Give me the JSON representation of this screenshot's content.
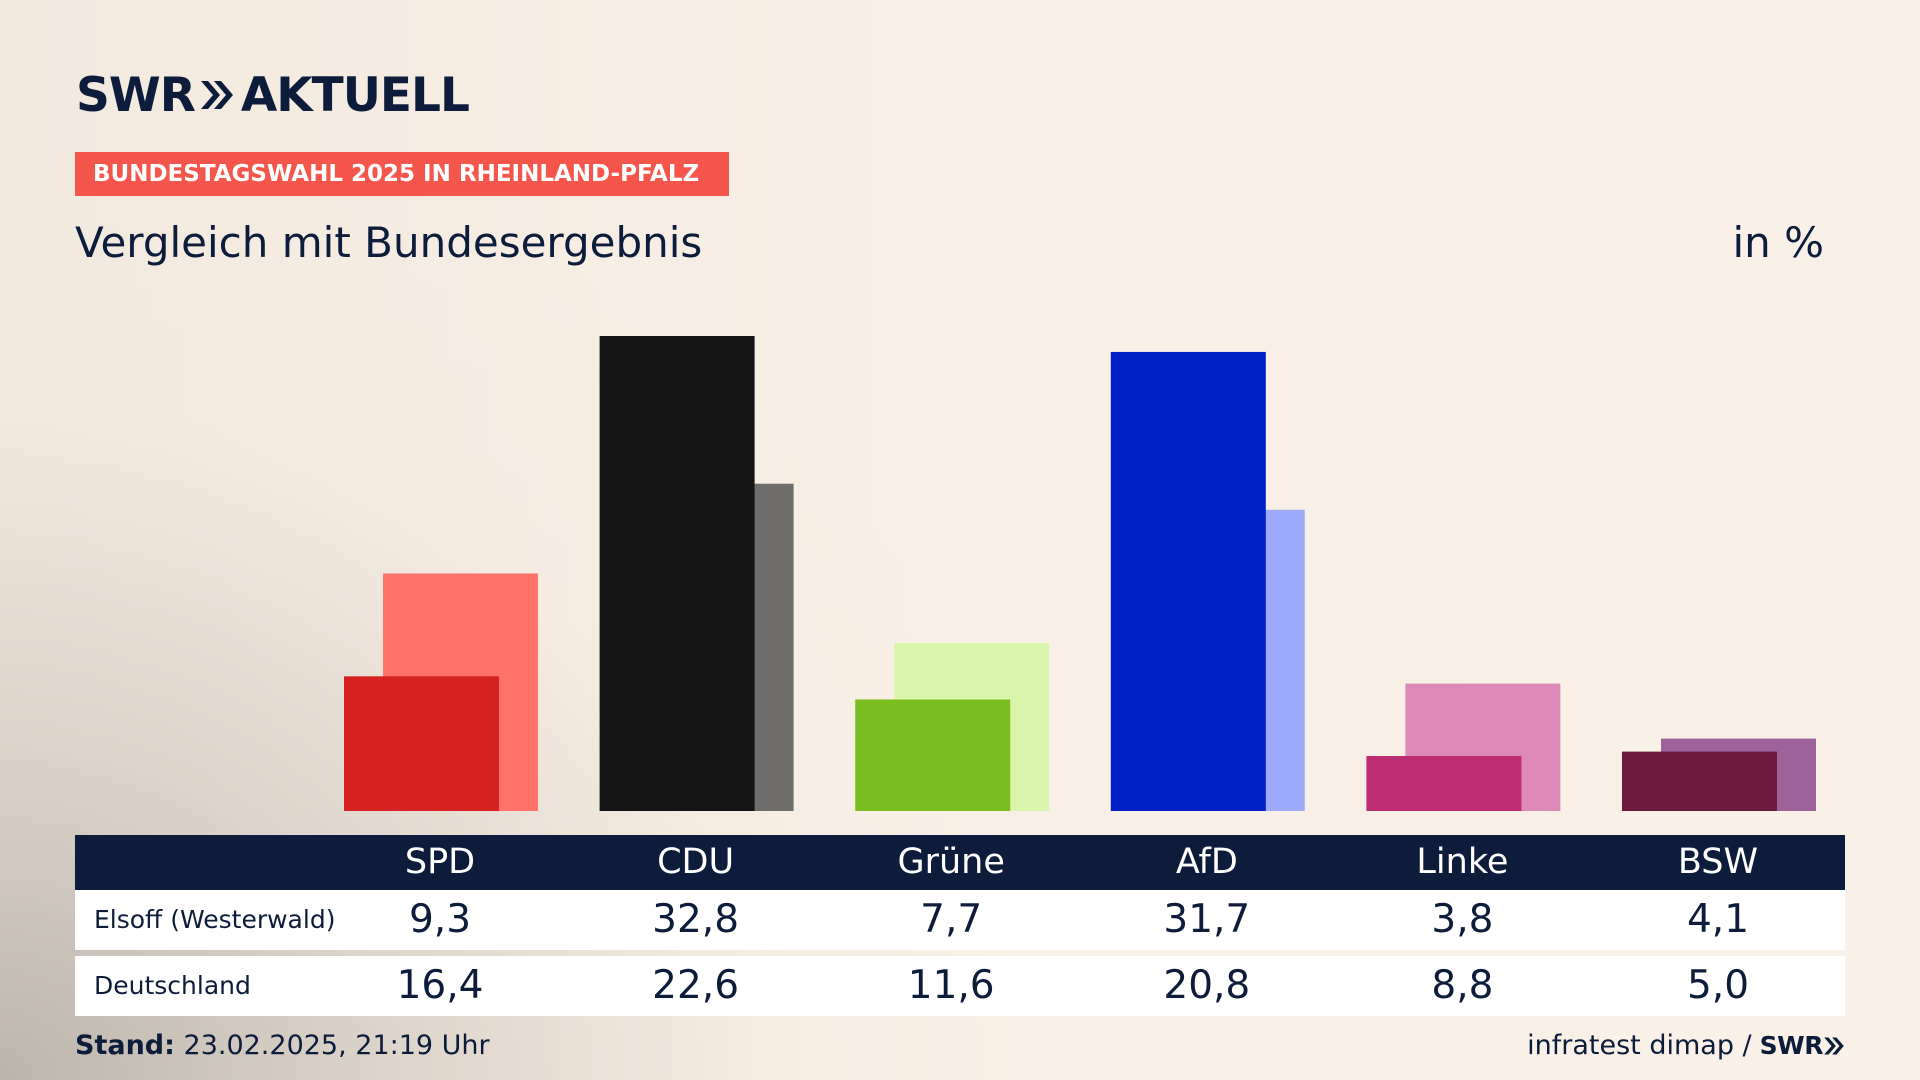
{
  "brand": {
    "logo_left": "SWR",
    "logo_right": "AKTUELL"
  },
  "badge": "BUNDESTAGSWAHL 2025 IN RHEINLAND-PFALZ",
  "subtitle": "Vergleich mit Bundesergebnis",
  "unit": "in %",
  "footer": {
    "stand_label": "Stand:",
    "stand_value": "23.02.2025, 21:19 Uhr",
    "source": "infratest dimap /",
    "source_logo": "SWR"
  },
  "table": {
    "row_labels": [
      "Elsoff (Westerwald)",
      "Deutschland"
    ],
    "local_values": [
      "9,3",
      "32,8",
      "7,7",
      "31,7",
      "3,8",
      "4,1"
    ],
    "national_values": [
      "16,4",
      "22,6",
      "11,6",
      "20,8",
      "8,8",
      "5,0"
    ]
  },
  "chart_data": {
    "type": "bar",
    "categories": [
      "SPD",
      "CDU",
      "Grüne",
      "AfD",
      "Linke",
      "BSW"
    ],
    "series": [
      {
        "name": "Elsoff (Westerwald)",
        "values": [
          9.3,
          32.8,
          7.7,
          31.7,
          3.8,
          4.1
        ],
        "colors": [
          "#d62220",
          "#141414",
          "#7abd1f",
          "#0020c8",
          "#bd2d74",
          "#6b1a3d"
        ]
      },
      {
        "name": "Deutschland",
        "values": [
          16.4,
          22.6,
          11.6,
          20.8,
          8.8,
          5.0
        ],
        "colors": [
          "#ff736b",
          "#6e6d6b",
          "#d9f5ab",
          "#9eaafc",
          "#de8ab8",
          "#9c6299"
        ]
      }
    ],
    "ylim": [
      0,
      32.8
    ],
    "grid": false,
    "legend": "table-below"
  }
}
